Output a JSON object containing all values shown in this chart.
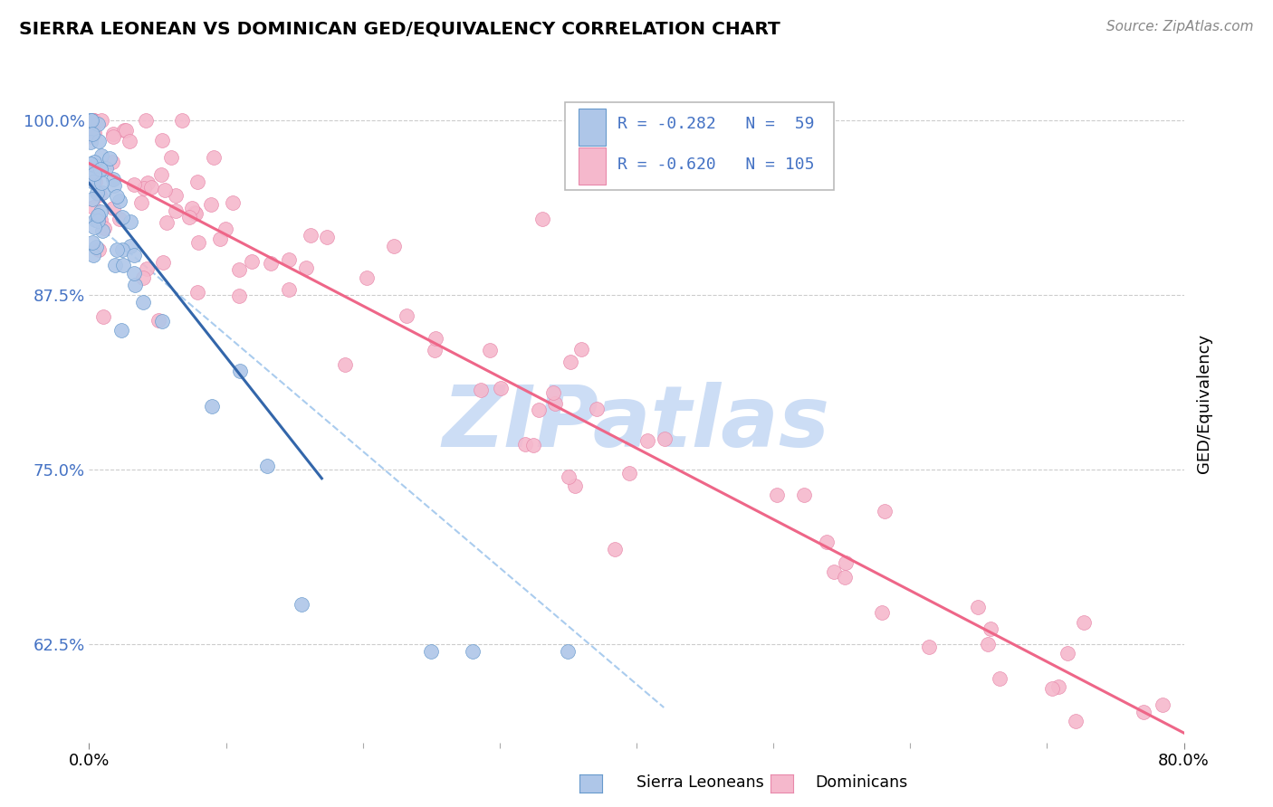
{
  "title": "SIERRA LEONEAN VS DOMINICAN GED/EQUIVALENCY CORRELATION CHART",
  "source": "Source: ZipAtlas.com",
  "ylabel": "GED/Equivalency",
  "ytick_labels": [
    "62.5%",
    "75.0%",
    "87.5%",
    "100.0%"
  ],
  "ytick_vals": [
    0.625,
    0.75,
    0.875,
    1.0
  ],
  "xmin": 0.0,
  "xmax": 0.8,
  "ymin": 0.555,
  "ymax": 1.04,
  "color_sierra": "#aec6e8",
  "color_sierra_edge": "#6699cc",
  "color_dominican": "#f5b8cc",
  "color_dominican_edge": "#e888aa",
  "color_sierra_line": "#3366aa",
  "color_dominican_line": "#ee6688",
  "color_dash": "#aaccee",
  "color_text_blue": "#4472c4",
  "watermark_color": "#ccddf5",
  "legend_text1": "R = -0.282   N =  59",
  "legend_text2": "R = -0.620   N = 105"
}
